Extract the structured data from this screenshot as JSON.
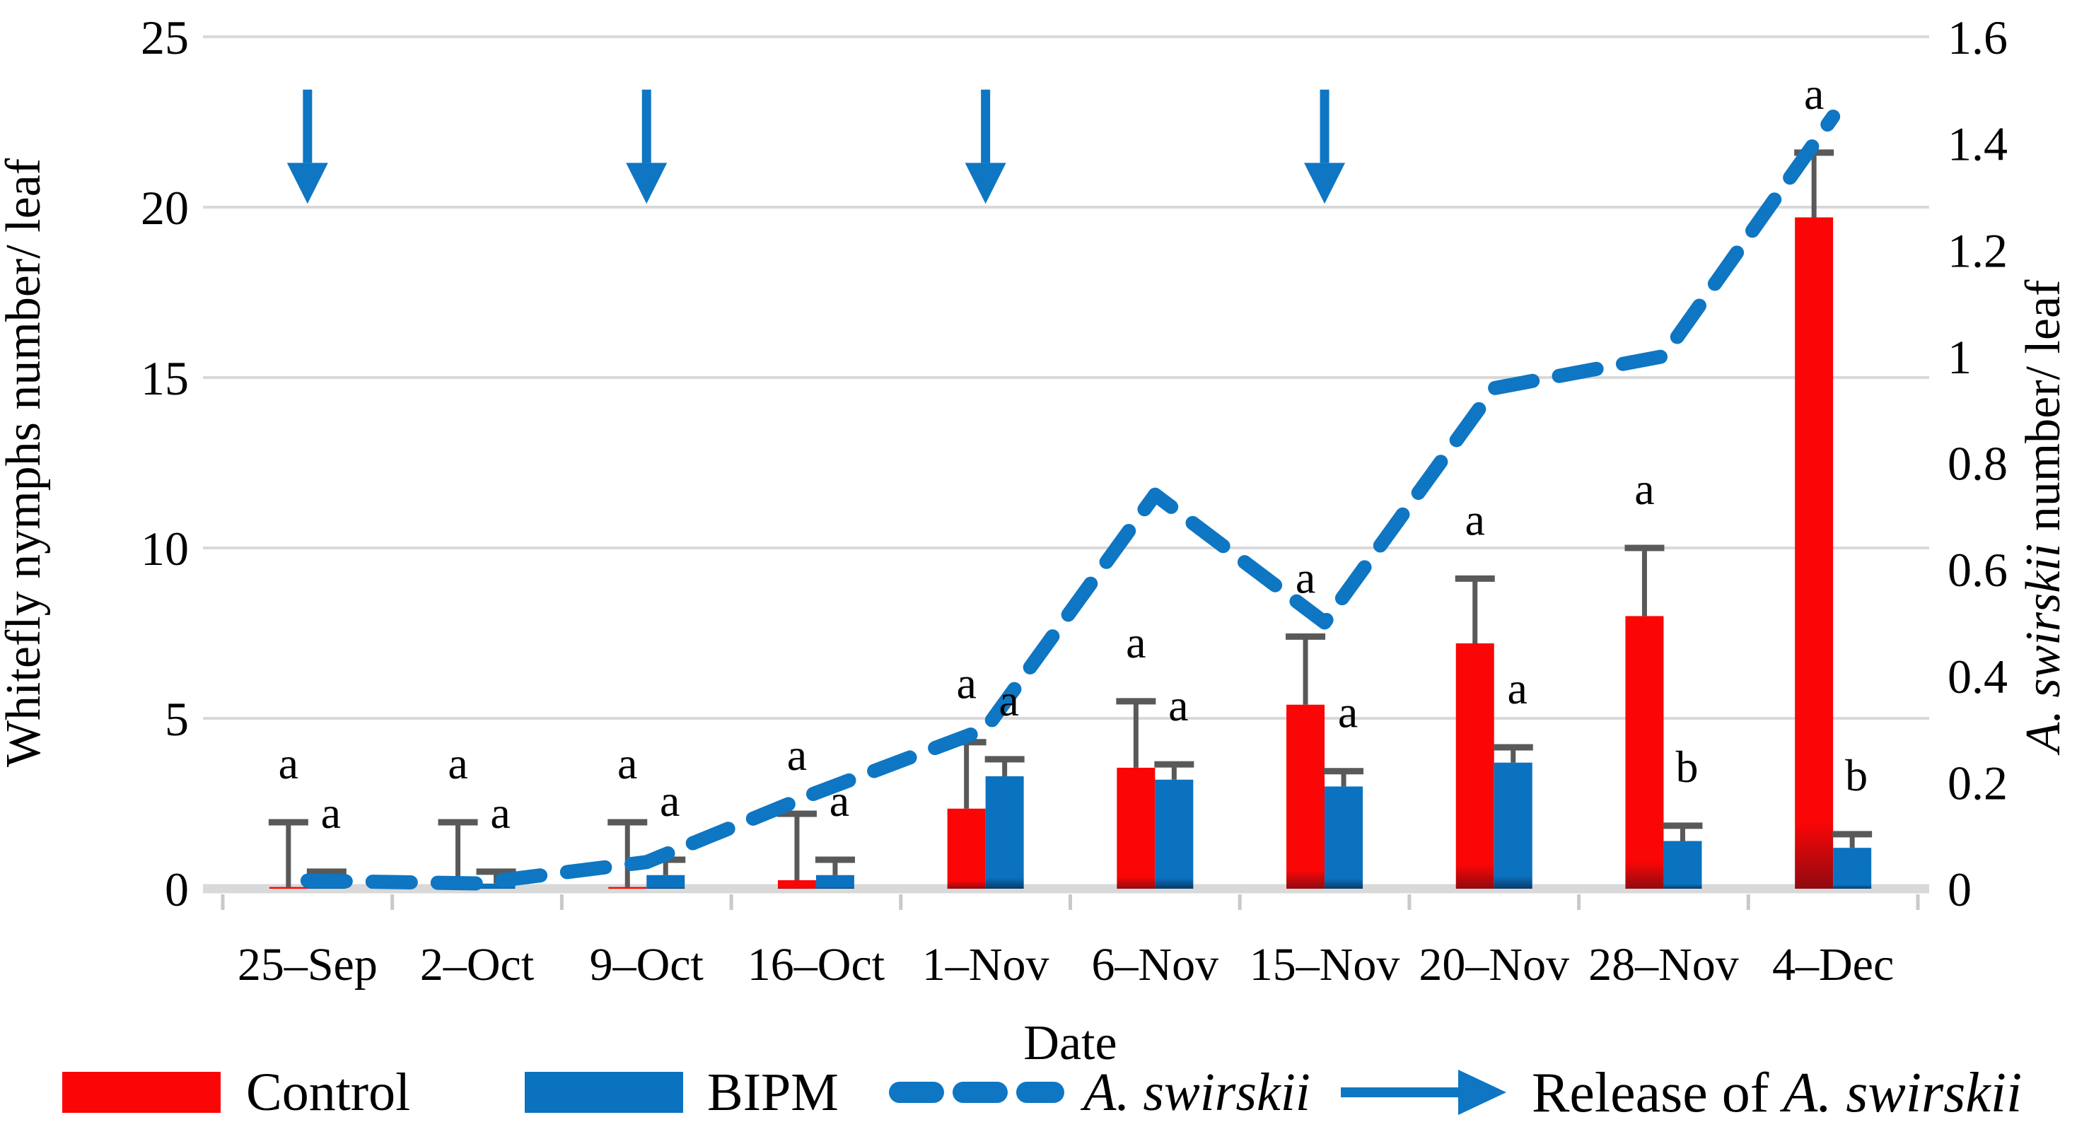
{
  "figure": {
    "background": "#ffffff"
  },
  "chart_data": {
    "type": "bar+line combo",
    "categories": [
      "25–Sep",
      "2–Oct",
      "9–Oct",
      "16–Oct",
      "1–Nov",
      "6–Nov",
      "15–Nov",
      "20–Nov",
      "28–Nov",
      "4–Dec"
    ],
    "x_axis_title": "Date",
    "left_axis": {
      "title": "Whitefly nymphs number/ leaf",
      "min": 0,
      "max": 25,
      "ticks": [
        0,
        5,
        10,
        15,
        20,
        25
      ],
      "grid": true
    },
    "right_axis": {
      "title_italic": "A. swirskii",
      "title_rest": " number/ leaf",
      "min": 0,
      "max": 1.6,
      "ticks": [
        "0",
        "0.2",
        "0.4",
        "0.6",
        "0.8",
        "1",
        "1.2",
        "1.4",
        "1.6"
      ]
    },
    "series": [
      {
        "name": "Control",
        "type": "bar",
        "axis": "left",
        "values": [
          0.05,
          0.05,
          0.05,
          0.25,
          2.35,
          3.55,
          5.4,
          7.2,
          8.0,
          19.7
        ],
        "error_bar_top": [
          1.95,
          1.95,
          1.95,
          2.2,
          4.3,
          5.5,
          7.4,
          9.1,
          10.0,
          21.6
        ],
        "letters": [
          "a",
          "a",
          "a",
          "a",
          "a",
          "a",
          "a",
          "a",
          "a",
          "a"
        ]
      },
      {
        "name": "BIPM",
        "type": "bar",
        "axis": "left",
        "values": [
          0.15,
          0.15,
          0.4,
          0.4,
          3.3,
          3.2,
          3.0,
          3.7,
          1.4,
          1.2
        ],
        "error_bar_top": [
          0.5,
          0.5,
          0.85,
          0.85,
          3.8,
          3.65,
          3.45,
          4.15,
          1.85,
          1.6
        ],
        "letters": [
          "a",
          "a",
          "a",
          "a",
          "a",
          "a",
          "a",
          "a",
          "b",
          "b"
        ]
      },
      {
        "name": "A. swirskii",
        "type": "dashed-line",
        "axis": "right",
        "values": [
          0.015,
          0.01,
          0.05,
          0.18,
          0.3,
          0.74,
          0.5,
          0.94,
          1.0,
          1.45
        ]
      }
    ],
    "release_arrows": {
      "dates": [
        "25–Sep",
        "9–Oct",
        "1–Nov",
        "15–Nov"
      ],
      "top_value_left_axis": 23.45,
      "tip_value_left_axis": 20.1
    },
    "legend": {
      "control": "Control",
      "bipm": "BIPM",
      "swirskii": "A. swirskii",
      "release_prefix": "Release of ",
      "release_italic": "A. swirskii"
    },
    "colors": {
      "control": "#fb0606",
      "control_dark": "#8f0a10",
      "bipm": "#0b72c0",
      "bipm_dark": "#0a3a66",
      "line": "#0e76c3",
      "arrow": "#0e76c3",
      "error_bar": "#595959",
      "gridline": "#d9d9d9",
      "axis_tick": "#c9c9c9",
      "letters": "#000000"
    }
  }
}
